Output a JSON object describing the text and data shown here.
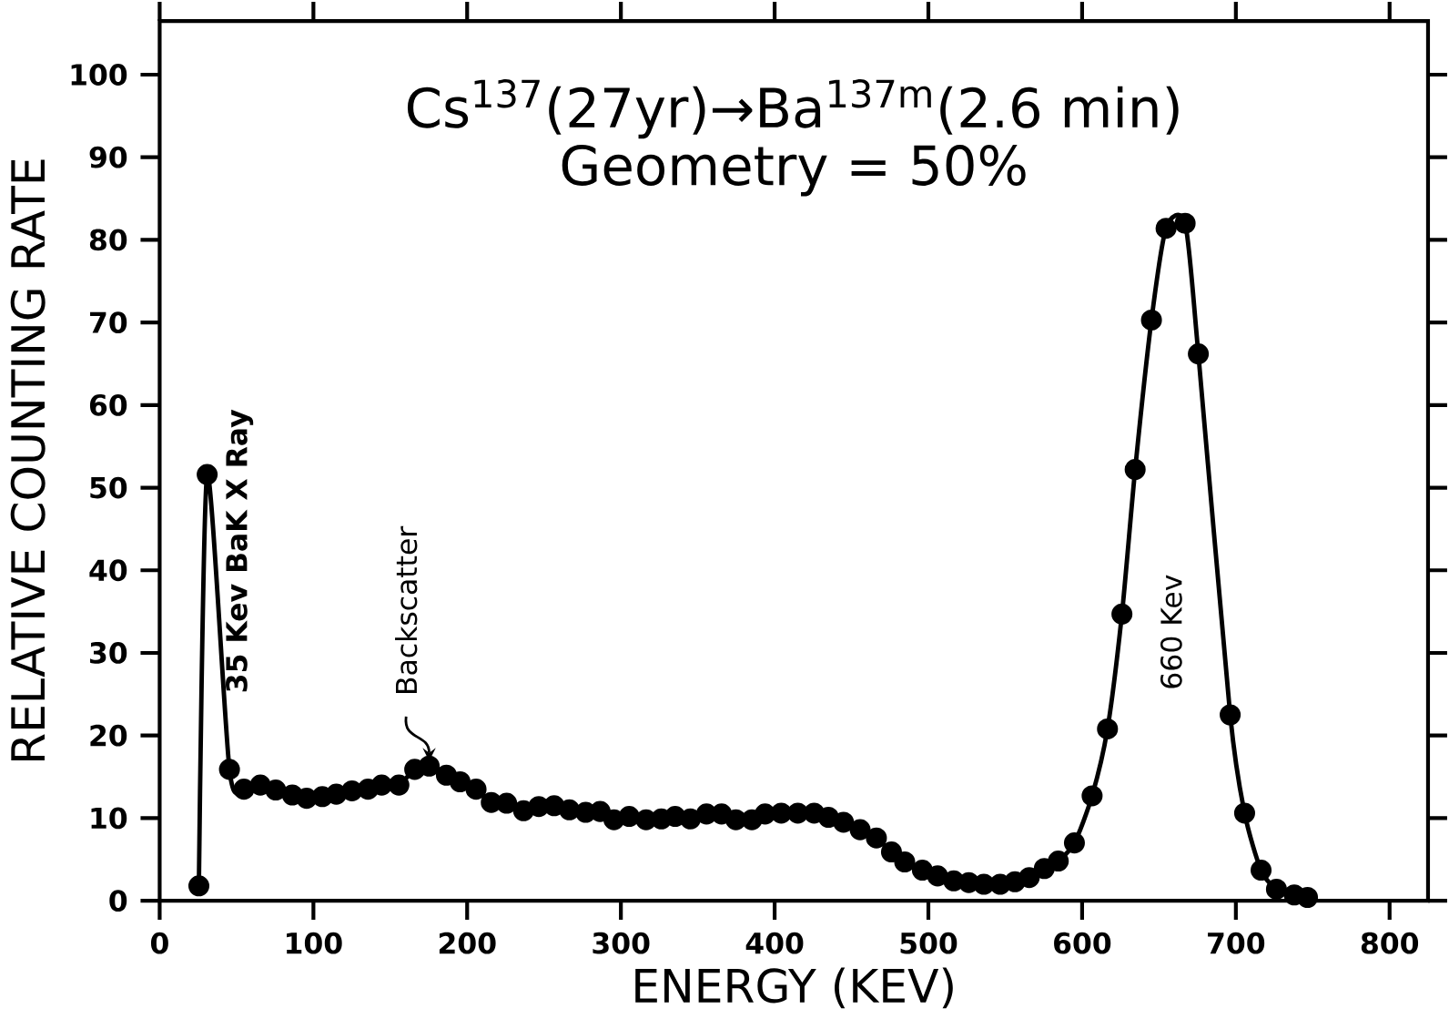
{
  "chart_data": {
    "type": "line",
    "title": "Cs$^{137}$(27yr)→Ba$^{137m}$(2.6 min)",
    "subtitle": "Geometry = 50%",
    "xlabel": "ENERGY (KEV)",
    "ylabel": "RELATIVE COUNTING RATE",
    "x": [
      25.5,
      30.9,
      45.4,
      54.8,
      65.5,
      75.5,
      86.3,
      95.6,
      105.8,
      114.9,
      125.1,
      135.5,
      144.4,
      155.6,
      165.9,
      175.3,
      186.5,
      195.4,
      205.8,
      215.7,
      225.7,
      236.7,
      246.6,
      256.6,
      266.5,
      277.1,
      286.5,
      295.5,
      305.4,
      316.4,
      326.3,
      335.3,
      345.2,
      355.7,
      365.5,
      374.8,
      385.2,
      393.8,
      404.3,
      415.1,
      425.7,
      435,
      444.8,
      455.6,
      466.2,
      476,
      484.6,
      496.1,
      506,
      516.5,
      526.3,
      536.1,
      546.7,
      556.3,
      565.6,
      575.4,
      584.5,
      595,
      606.5,
      616.5,
      625.9,
      634.5,
      645.1,
      654.6,
      667,
      675.6,
      696.3,
      705.7,
      716.4,
      726.4,
      738,
      746.6
    ],
    "values": [
      1.8,
      51.6,
      15.9,
      13.5,
      14.0,
      13.4,
      12.8,
      12.4,
      12.6,
      12.9,
      13.3,
      13.5,
      14.0,
      14.0,
      15.9,
      16.3,
      15.2,
      14.4,
      13.5,
      11.9,
      11.8,
      10.9,
      11.4,
      11.5,
      11.0,
      10.7,
      10.8,
      9.8,
      10.2,
      9.8,
      9.9,
      10.2,
      9.9,
      10.5,
      10.5,
      9.8,
      9.8,
      10.5,
      10.6,
      10.6,
      10.6,
      10.1,
      9.5,
      8.6,
      7.6,
      5.9,
      4.7,
      3.7,
      3.0,
      2.4,
      2.2,
      2.0,
      2.0,
      2.3,
      2.8,
      3.9,
      4.8,
      7.0,
      12.7,
      20.8,
      34.7,
      52.2,
      70.3,
      81.4,
      82.0,
      66.2,
      22.5,
      10.6,
      3.7,
      1.4,
      0.7,
      0.4
    ],
    "color": "#000000",
    "marker": "circle",
    "line_style": "solid",
    "grid": false,
    "xlim": [
      0,
      825
    ],
    "ylim": [
      0,
      106.5
    ],
    "xticks": [
      0,
      100,
      200,
      300,
      400,
      500,
      600,
      700,
      800
    ],
    "yticks": [
      0,
      10,
      20,
      30,
      40,
      50,
      60,
      70,
      80,
      90,
      100
    ],
    "annotations": [
      {
        "text": "35 Kev BaK X Ray",
        "x": 30.9,
        "y": 51.6
      },
      {
        "text": "Backscatter",
        "x": 175.3,
        "y": 16.3
      },
      "660 Kev"
    ]
  }
}
